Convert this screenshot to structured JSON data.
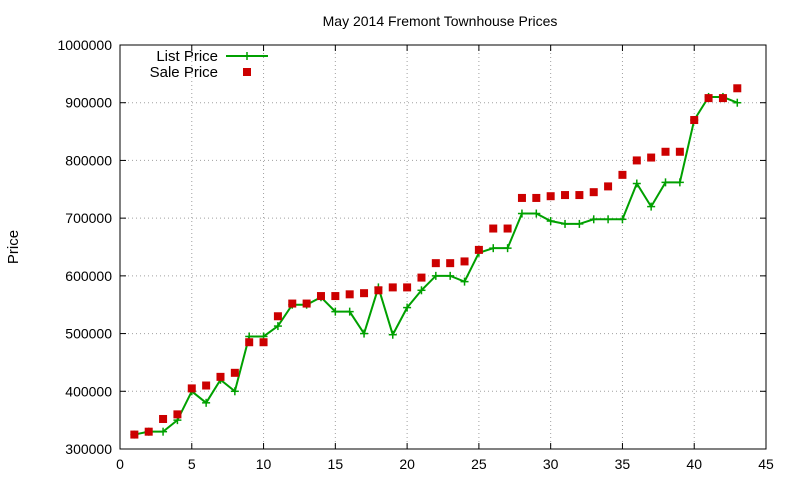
{
  "chart_data": {
    "type": "line",
    "title": "May 2014 Fremont Townhouse Prices",
    "xlabel": "",
    "ylabel": "Price",
    "xlim": [
      0,
      45
    ],
    "ylim": [
      300000,
      1000000
    ],
    "xticks": [
      0,
      5,
      10,
      15,
      20,
      25,
      30,
      35,
      40,
      45
    ],
    "yticks": [
      300000,
      400000,
      500000,
      600000,
      700000,
      800000,
      900000,
      1000000
    ],
    "grid": true,
    "legend_position": "top-left",
    "series": [
      {
        "name": "List Price",
        "style": "line-plus",
        "color": "#00a000",
        "x": [
          1,
          2,
          3,
          4,
          5,
          6,
          7,
          8,
          9,
          10,
          11,
          12,
          13,
          14,
          15,
          16,
          17,
          18,
          19,
          20,
          21,
          22,
          23,
          24,
          25,
          26,
          27,
          28,
          29,
          30,
          31,
          32,
          33,
          34,
          35,
          36,
          37,
          38,
          39,
          40,
          41,
          42,
          43
        ],
        "y": [
          325000,
          330000,
          330000,
          350000,
          400000,
          380000,
          420000,
          400000,
          495000,
          495000,
          513000,
          550000,
          550000,
          563000,
          538000,
          538000,
          500000,
          580000,
          498000,
          545000,
          575000,
          600000,
          600000,
          590000,
          640000,
          648000,
          648000,
          708000,
          708000,
          695000,
          690000,
          690000,
          698000,
          698000,
          698000,
          760000,
          720000,
          762000,
          762000,
          870000,
          910000,
          910000,
          900000
        ]
      },
      {
        "name": "Sale Price",
        "style": "square-points",
        "color": "#cc0000",
        "x": [
          1,
          2,
          3,
          4,
          5,
          6,
          7,
          8,
          9,
          10,
          11,
          12,
          13,
          14,
          15,
          16,
          17,
          18,
          19,
          20,
          21,
          22,
          23,
          24,
          25,
          26,
          27,
          28,
          29,
          30,
          31,
          32,
          33,
          34,
          35,
          36,
          37,
          38,
          39,
          40,
          41,
          42,
          43
        ],
        "y": [
          325000,
          330000,
          352000,
          360000,
          405000,
          410000,
          425000,
          432000,
          485000,
          485000,
          530000,
          552000,
          552000,
          565000,
          565000,
          568000,
          570000,
          575000,
          580000,
          580000,
          597000,
          622000,
          622000,
          625000,
          645000,
          682000,
          682000,
          735000,
          735000,
          738000,
          740000,
          740000,
          745000,
          755000,
          775000,
          800000,
          805000,
          815000,
          815000,
          870000,
          908000,
          908000,
          925000
        ]
      }
    ]
  }
}
